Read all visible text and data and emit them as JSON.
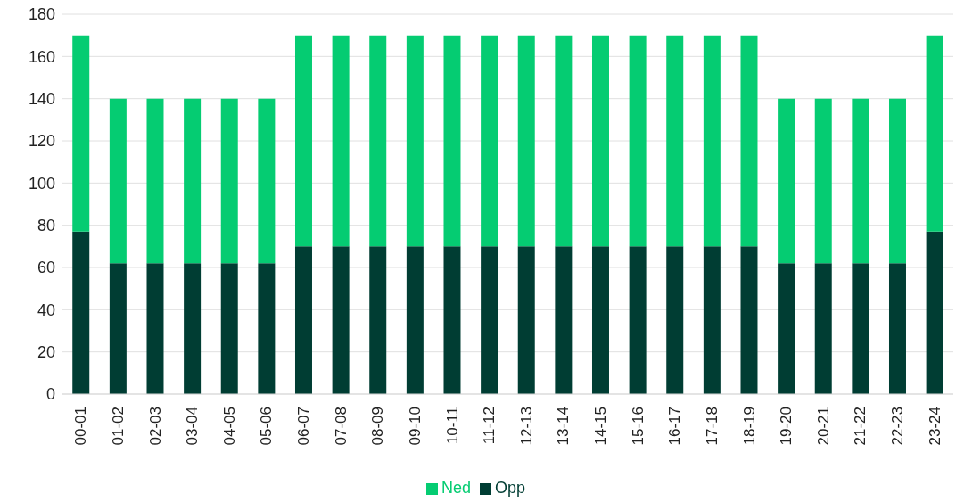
{
  "chart_data": {
    "type": "bar",
    "stacked": true,
    "categories": [
      "00-01",
      "01-02",
      "02-03",
      "03-04",
      "04-05",
      "05-06",
      "06-07",
      "07-08",
      "08-09",
      "09-10",
      "10-11",
      "11-12",
      "12-13",
      "13-14",
      "14-15",
      "15-16",
      "16-17",
      "17-18",
      "18-19",
      "19-20",
      "20-21",
      "21-22",
      "22-23",
      "23-24"
    ],
    "series": [
      {
        "name": "Opp",
        "color": "#003d33",
        "values": [
          77,
          62,
          62,
          62,
          62,
          62,
          70,
          70,
          70,
          70,
          70,
          70,
          70,
          70,
          70,
          70,
          70,
          70,
          70,
          62,
          62,
          62,
          62,
          77
        ]
      },
      {
        "name": "Ned",
        "color": "#05cc72",
        "values": [
          93,
          78,
          78,
          78,
          78,
          78,
          100,
          100,
          100,
          100,
          100,
          100,
          100,
          100,
          100,
          100,
          100,
          100,
          100,
          78,
          78,
          78,
          78,
          93
        ]
      }
    ],
    "ylim": [
      0,
      180
    ],
    "yticks": [
      0,
      20,
      40,
      60,
      80,
      100,
      120,
      140,
      160,
      180
    ],
    "grid": "y",
    "legend": "bottom"
  }
}
